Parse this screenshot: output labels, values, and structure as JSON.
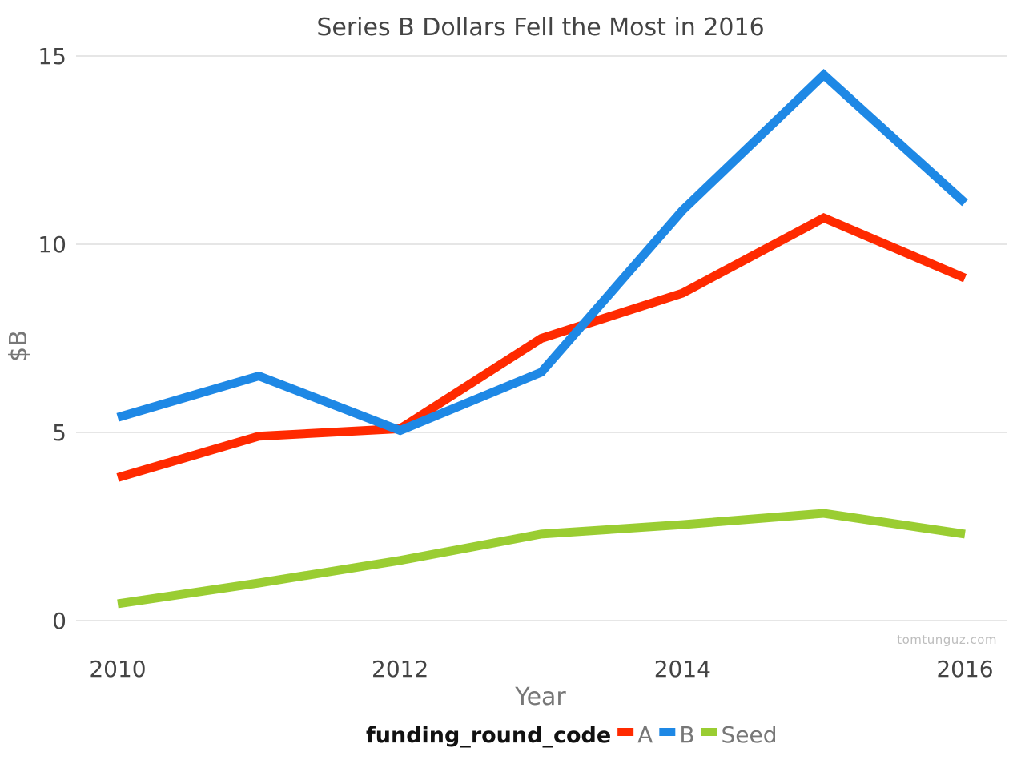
{
  "chart_data": {
    "type": "line",
    "title": "Series B Dollars Fell the Most in 2016",
    "xlabel": "Year",
    "ylabel": "$B",
    "x": [
      2010,
      2011,
      2012,
      2013,
      2014,
      2015,
      2016
    ],
    "x_ticks": [
      "2010",
      "2012",
      "2014",
      "2016"
    ],
    "y_ticks": [
      "0",
      "5",
      "10",
      "15"
    ],
    "xlim": [
      2010,
      2016
    ],
    "ylim": [
      0,
      15
    ],
    "grid": true,
    "legend_position": "bottom",
    "legend_title": "funding_round_code",
    "series": [
      {
        "name": "A",
        "color": "#ff2a00",
        "values": [
          3.8,
          4.9,
          5.1,
          7.5,
          8.7,
          10.7,
          9.1
        ]
      },
      {
        "name": "B",
        "color": "#1e88e5",
        "values": [
          5.4,
          6.5,
          5.05,
          6.6,
          10.9,
          14.5,
          11.1
        ]
      },
      {
        "name": "Seed",
        "color": "#9acd32",
        "values": [
          0.45,
          1.0,
          1.6,
          2.3,
          2.55,
          2.85,
          2.3
        ]
      }
    ]
  },
  "watermark": "tomtunguz.com"
}
